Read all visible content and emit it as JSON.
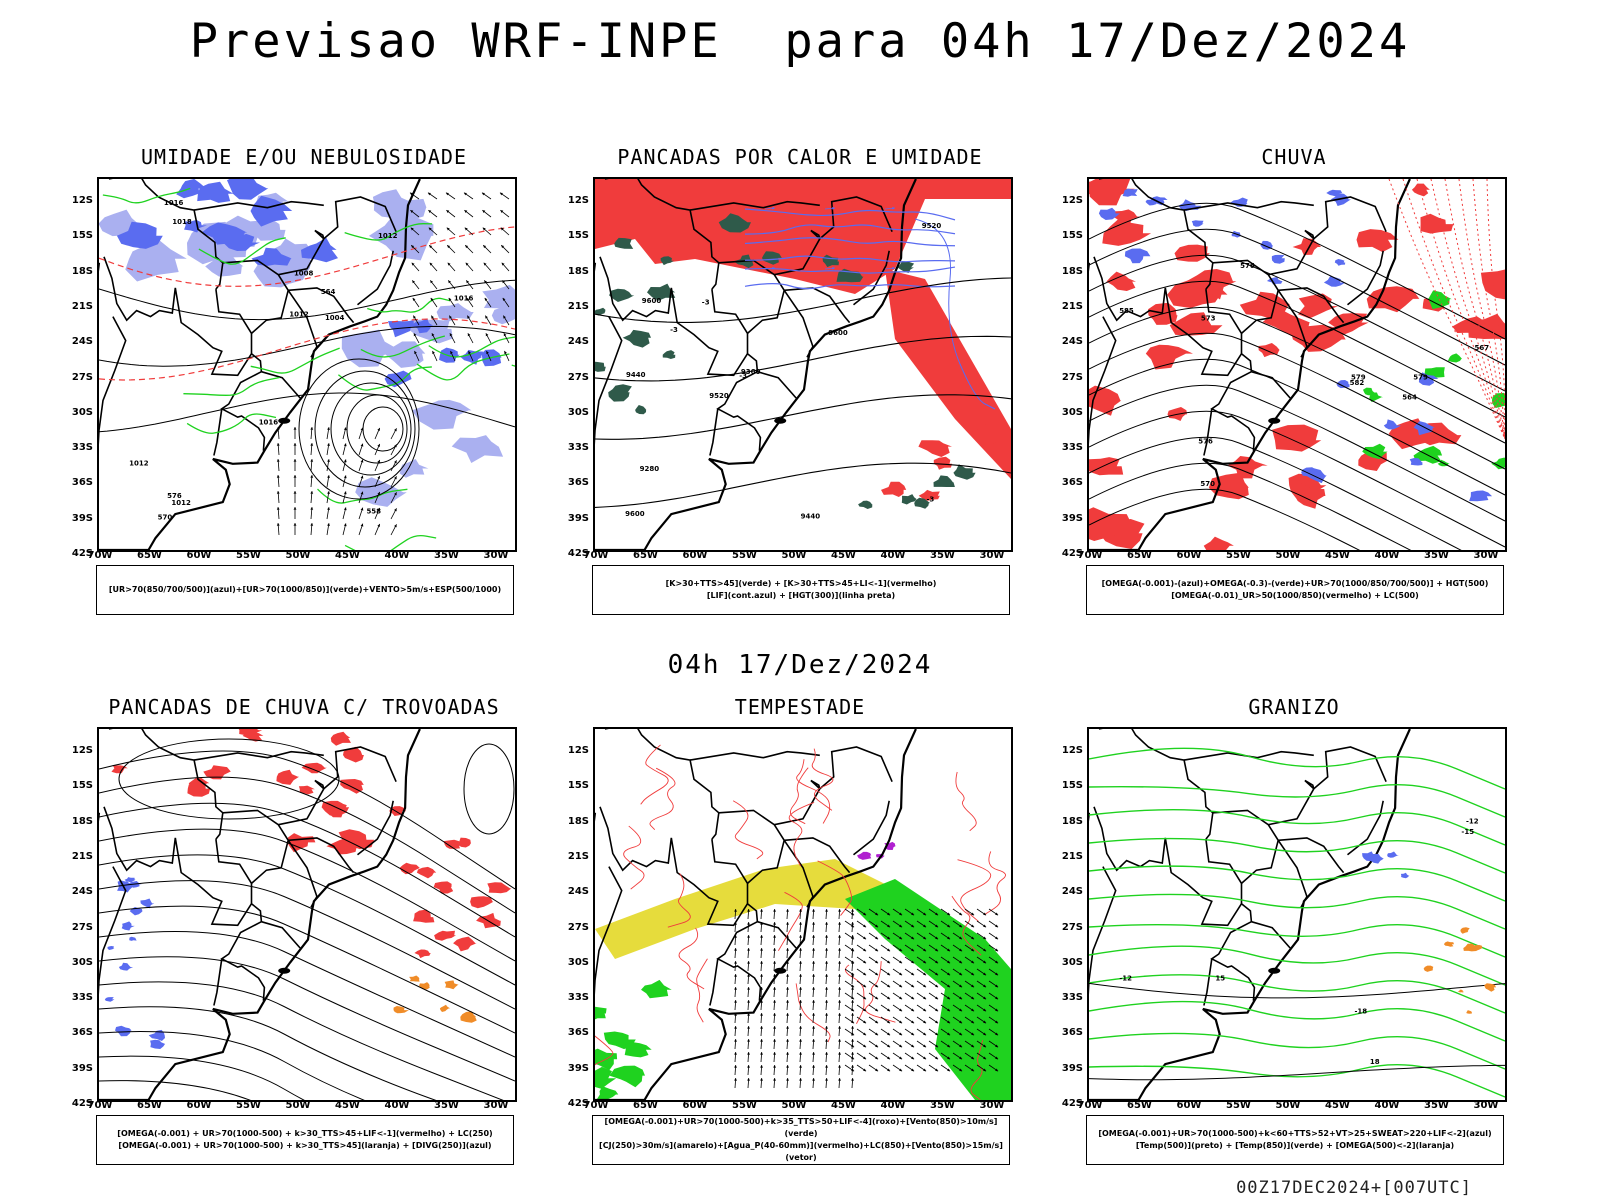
{
  "main_title": "Previsao WRF-INPE  para 04h 17/Dez/2024",
  "mid_time": "04h 17/Dez/2024",
  "footer": "00Z17DEC2024+[007UTC]",
  "lat_ticks": [
    "12S",
    "15S",
    "18S",
    "21S",
    "24S",
    "27S",
    "30S",
    "33S",
    "36S",
    "39S",
    "42S"
  ],
  "lon_ticks": [
    "70W",
    "65W",
    "60W",
    "55W",
    "50W",
    "45W",
    "40W",
    "35W",
    "30W"
  ],
  "colors": {
    "blue": "#5a6cf0",
    "lightblue": "#aab0f0",
    "green": "#1fd21f",
    "red": "#f03c3c",
    "darkgreen": "#2f5a4a",
    "yellow": "#e6dc3c",
    "orange": "#f08c28",
    "purple": "#b020d0"
  },
  "panels": [
    {
      "title": "UMIDADE E/OU NEBULOSIDADE",
      "legend": [
        "[UR>70(850/700/500)](azul)+[UR>70(1000/850)](verde)+VENTO>5m/s+ESP(500/1000)"
      ],
      "contour_labels": [
        "1012",
        "1016",
        "1012",
        "1016",
        "1012",
        "1018",
        "1016",
        "1004",
        "1008",
        "1012",
        "576",
        "570",
        "564",
        "558"
      ]
    },
    {
      "title": "PANCADAS POR CALOR E UMIDADE",
      "legend": [
        "[K>30+TTS>45](verde) + [K>30+TTS>45+LI<-1](vermelho)",
        "[LIF](cont.azul) + [HGT(300)](linha preta)"
      ],
      "contour_labels": [
        "9600",
        "9600",
        "9520",
        "9440",
        "9440",
        "9360",
        "9280",
        "9520",
        "9600",
        "-3",
        "-3",
        "-3",
        "-3"
      ]
    },
    {
      "title": "CHUVA",
      "legend": [
        "[OMEGA(-0.001)-(azul)+OMEGA(-0.3)-(verde)+UR>70(1000/850/700/500)] + HGT(500)",
        "[OMEGA(-0.01)_UR>50(1000/850)(vermelho) + LC(500)"
      ],
      "contour_labels": [
        "585",
        "582",
        "579",
        "576",
        "573",
        "570",
        "567",
        "564",
        "579",
        "576"
      ]
    },
    {
      "title": "PANCADAS DE CHUVA C/ TROVOADAS",
      "legend": [
        "[OMEGA(-0.001) + UR>70(1000-500) + k>30_TTS>45+LIF<-1](vermelho) + LC(250)",
        "[OMEGA(-0.001) + UR>70(1000-500) + k>30_TTS>45](laranja) + [DIVG(250)](azul)"
      ]
    },
    {
      "title": "TEMPESTADE",
      "legend": [
        "[OMEGA(-0.001)+UR>70(1000-500)+k>35_TTS>50+LIF<-4](roxo)+[Vento(850)>10m/s](verde)",
        "[CJ(250)>30m/s](amarelo)+[Agua_P(40-60mm)](vermelho)+LC(850)+[Vento(850)>15m/s](vetor)"
      ]
    },
    {
      "title": "GRANIZO",
      "legend": [
        "[OMEGA(-0.001)+UR>70(1000-500)+k<60+TTS>52+VT>25+SWEAT>220+LIF<-2](azul)",
        "[Temp(500)](preto) + [Temp(850)](verde) + [OMEGA(500)<-2](laranja)"
      ],
      "contour_labels": [
        "-12",
        "-15",
        "-18",
        "-12",
        "15",
        "18"
      ]
    }
  ]
}
